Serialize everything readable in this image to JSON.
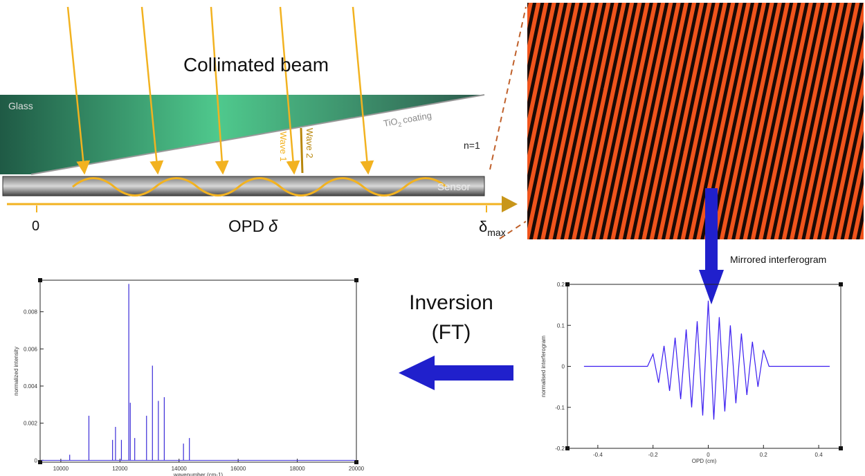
{
  "diagram": {
    "title": "Collimated beam",
    "glass": "Glass",
    "coating": {
      "base": "TiO",
      "sub": "2",
      "rest": "coating"
    },
    "wave1": "Wave 1",
    "wave2": "Wave 2",
    "medium": "n=1",
    "sensor": "Sensor",
    "axis": {
      "origin": "0",
      "label": "OPD",
      "symbol": "δ",
      "max_symbol": "δ",
      "max_sub": "max"
    }
  },
  "annotations": {
    "mirrored": "Mirrored interferogram",
    "inversion": "Inversion",
    "ft": "(FT)"
  },
  "chart_data": [
    {
      "type": "stem",
      "x_label": "wavenumber (cm-1)",
      "y_label": "normalized intensity",
      "color": "#3a2bd8",
      "x": [
        10300,
        10950,
        11750,
        11850,
        12050,
        12300,
        12350,
        12500,
        12900,
        13100,
        13300,
        13500,
        14150,
        14350
      ],
      "values": [
        0.0003,
        0.0024,
        0.0011,
        0.0018,
        0.0011,
        0.0095,
        0.0031,
        0.0012,
        0.0024,
        0.0051,
        0.0032,
        0.0034,
        0.0009,
        0.0012
      ],
      "xlim": [
        9300,
        20000
      ],
      "ylim": [
        -0.0001,
        0.0097
      ],
      "xticks": [
        10000,
        12000,
        14000,
        16000,
        18000,
        20000
      ],
      "yticks": [
        0,
        0.002,
        0.004,
        0.006,
        0.008
      ]
    },
    {
      "type": "line",
      "x_label": "OPD (cm)",
      "y_label": "normalised interferogram",
      "color": "#3a1cf0",
      "x": [
        -0.45,
        -0.22,
        -0.2,
        -0.18,
        -0.16,
        -0.14,
        -0.12,
        -0.1,
        -0.08,
        -0.06,
        -0.04,
        -0.02,
        0,
        0.02,
        0.04,
        0.06,
        0.08,
        0.1,
        0.12,
        0.14,
        0.16,
        0.18,
        0.2,
        0.22,
        0.44
      ],
      "values": [
        0,
        0,
        0.03,
        -0.04,
        0.05,
        -0.06,
        0.07,
        -0.08,
        0.09,
        -0.1,
        0.11,
        -0.12,
        0.16,
        -0.13,
        0.12,
        -0.11,
        0.1,
        -0.09,
        0.08,
        -0.07,
        0.06,
        -0.05,
        0.04,
        0,
        0
      ],
      "xlim": [
        -0.51,
        0.48
      ],
      "ylim": [
        -0.2,
        0.2
      ],
      "xticks": [
        -0.4,
        -0.2,
        0,
        0.2,
        0.4
      ],
      "yticks": [
        -0.2,
        -0.1,
        0,
        0.1,
        0.2
      ]
    }
  ]
}
